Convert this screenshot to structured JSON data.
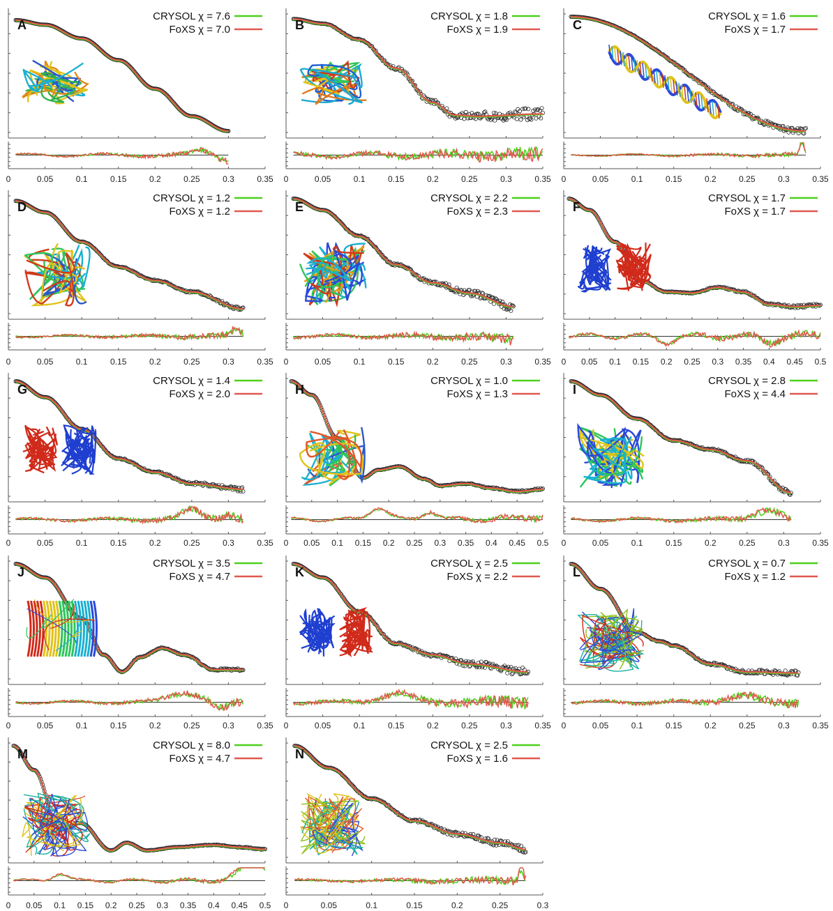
{
  "colors": {
    "crysol": "#4cd01a",
    "foxs": "#e0584e",
    "experimental": "#2a2a2a",
    "axis": "#555555"
  },
  "chart_data": [
    {
      "type": "line",
      "label": "A",
      "crysol_chi": "CRYSOL χ = 7.6",
      "foxs_chi": "FoXS χ = 7.0",
      "xticks": [
        "0",
        "0.05",
        "0.1",
        "0.15",
        "0.2",
        "0.25",
        "0.3",
        "0.35"
      ],
      "xlim": [
        0,
        0.35
      ],
      "qmin": 0.01,
      "qmax": 0.3,
      "profile": [
        [
          0.01,
          0.03
        ],
        [
          0.05,
          0.07
        ],
        [
          0.1,
          0.19
        ],
        [
          0.15,
          0.38
        ],
        [
          0.2,
          0.63
        ],
        [
          0.25,
          0.87
        ],
        [
          0.3,
          1.0
        ]
      ],
      "noise": 0.0,
      "res_amp": 0.12,
      "res_noise": 0.25,
      "res_bumps": [
        [
          0.265,
          0.6,
          0.02
        ]
      ],
      "res_tail": -0.5,
      "insert": "protein",
      "insert_palette": [
        "#e08a1a",
        "#e0c21a",
        "#2fb34a",
        "#1ab0d0",
        "#2a58c8"
      ]
    },
    {
      "type": "line",
      "label": "B",
      "crysol_chi": "CRYSOL χ = 1.8",
      "foxs_chi": "FoXS χ = 1.9",
      "xticks": [
        "0",
        "0.05",
        "0.1",
        "0.15",
        "0.2",
        "0.25",
        "0.3",
        "0.35"
      ],
      "xlim": [
        0,
        0.35
      ],
      "qmin": 0.01,
      "qmax": 0.35,
      "profile": [
        [
          0.01,
          0.02
        ],
        [
          0.05,
          0.06
        ],
        [
          0.1,
          0.2
        ],
        [
          0.15,
          0.45
        ],
        [
          0.2,
          0.75
        ],
        [
          0.23,
          0.86
        ],
        [
          0.26,
          0.87
        ],
        [
          0.35,
          0.85
        ]
      ],
      "noise": 0.06,
      "res_amp": 0.15,
      "res_noise": 0.65,
      "res_bumps": [],
      "res_tail": 0,
      "insert": "protein",
      "insert_palette": [
        "#1a5fd0",
        "#1aa8d0",
        "#e0c21a",
        "#2fc45a",
        "#e07a1a",
        "#d03a1a"
      ]
    },
    {
      "type": "line",
      "label": "C",
      "crysol_chi": "CRYSOL χ = 1.6",
      "foxs_chi": "FoXS χ = 1.7",
      "xticks": [
        "0",
        "0.05",
        "0.1",
        "0.15",
        "0.2",
        "0.25",
        "0.3",
        "0.35"
      ],
      "xlim": [
        0,
        0.35
      ],
      "qmin": 0.01,
      "qmax": 0.33,
      "profile": [
        [
          0.01,
          0.0
        ],
        [
          0.33,
          1.0
        ]
      ],
      "noise": 0.03,
      "res_amp": 0.08,
      "res_noise": 0.2,
      "res_bumps": [
        [
          0.325,
          1.2,
          0.004
        ]
      ],
      "res_tail": 0,
      "insert": "helix",
      "insert_palette": [
        "#2a4ad8",
        "#1ab0d0",
        "#e0c21a",
        "#d03a1a"
      ]
    },
    {
      "type": "line",
      "label": "D",
      "crysol_chi": "CRYSOL χ = 1.2",
      "foxs_chi": "FoXS χ = 1.2",
      "xticks": [
        "0",
        "0.05",
        "0.1",
        "0.15",
        "0.2",
        "0.25",
        "0.3",
        "0.35"
      ],
      "xlim": [
        0,
        0.35
      ],
      "qmin": 0.01,
      "qmax": 0.32,
      "profile": [
        [
          0.01,
          0.02
        ],
        [
          0.05,
          0.12
        ],
        [
          0.1,
          0.38
        ],
        [
          0.15,
          0.6
        ],
        [
          0.2,
          0.72
        ],
        [
          0.25,
          0.82
        ],
        [
          0.32,
          0.97
        ]
      ],
      "noise": 0.015,
      "res_amp": 0.08,
      "res_noise": 0.3,
      "res_bumps": [
        [
          0.31,
          0.6,
          0.01
        ]
      ],
      "res_tail": 0,
      "insert": "protein",
      "insert_palette": [
        "#1ab0d0",
        "#2fc45a",
        "#e0c21a",
        "#d03a1a",
        "#2a58c8"
      ]
    },
    {
      "type": "line",
      "label": "E",
      "crysol_chi": "CRYSOL χ = 2.2",
      "foxs_chi": "FoXS χ = 2.3",
      "xticks": [
        "0",
        "0.05",
        "0.1",
        "0.15",
        "0.2",
        "0.25",
        "0.3",
        "0.35"
      ],
      "xlim": [
        0,
        0.35
      ],
      "qmin": 0.01,
      "qmax": 0.31,
      "profile": [
        [
          0.01,
          0.0
        ],
        [
          0.05,
          0.1
        ],
        [
          0.1,
          0.33
        ],
        [
          0.15,
          0.58
        ],
        [
          0.2,
          0.74
        ],
        [
          0.25,
          0.83
        ],
        [
          0.31,
          0.95
        ]
      ],
      "noise": 0.04,
      "res_amp": 0.12,
      "res_noise": 0.45,
      "res_bumps": [],
      "res_tail": -0.3,
      "insert": "rna",
      "insert_palette": [
        "#2a4ad8",
        "#1ab0d0",
        "#e0a01a",
        "#d03a1a",
        "#2fc45a"
      ]
    },
    {
      "type": "line",
      "label": "F",
      "crysol_chi": "CRYSOL χ = 1.7",
      "foxs_chi": "FoXS χ = 1.7",
      "xticks": [
        "0",
        "0.05",
        "0.1",
        "0.15",
        "0.2",
        "0.25",
        "0.3",
        "0.35",
        "0.4",
        "0.45",
        "0.5"
      ],
      "xlim": [
        0,
        0.5
      ],
      "qmin": 0.01,
      "qmax": 0.5,
      "profile": [
        [
          0.01,
          0.0
        ],
        [
          0.05,
          0.1
        ],
        [
          0.1,
          0.38
        ],
        [
          0.15,
          0.72
        ],
        [
          0.2,
          0.82
        ],
        [
          0.25,
          0.83
        ],
        [
          0.3,
          0.78
        ],
        [
          0.35,
          0.82
        ],
        [
          0.4,
          0.93
        ],
        [
          0.45,
          0.95
        ],
        [
          0.5,
          0.94
        ]
      ],
      "noise": 0.015,
      "res_amp": 0.2,
      "res_noise": 0.4,
      "res_bumps": [
        [
          0.2,
          -0.5,
          0.02
        ],
        [
          0.4,
          -0.5,
          0.02
        ]
      ],
      "res_tail": 0,
      "insert": "dimer",
      "insert_palette": [
        "#1f3fd0",
        "#d02a1a"
      ]
    },
    {
      "type": "line",
      "label": "G",
      "crysol_chi": "CRYSOL χ = 1.4",
      "foxs_chi": "FoXS χ = 2.0",
      "xticks": [
        "0",
        "0.05",
        "0.1",
        "0.15",
        "0.2",
        "0.25",
        "0.3",
        "0.35"
      ],
      "xlim": [
        0,
        0.35
      ],
      "qmin": 0.01,
      "qmax": 0.32,
      "profile": [
        [
          0.01,
          0.0
        ],
        [
          0.05,
          0.14
        ],
        [
          0.1,
          0.42
        ],
        [
          0.15,
          0.68
        ],
        [
          0.2,
          0.8
        ],
        [
          0.25,
          0.9
        ],
        [
          0.32,
          0.95
        ]
      ],
      "noise": 0.02,
      "res_amp": 0.1,
      "res_noise": 0.35,
      "res_bumps": [
        [
          0.25,
          0.8,
          0.02
        ],
        [
          0.3,
          0.4,
          0.015
        ]
      ],
      "res_tail": 0,
      "insert": "dimer",
      "insert_palette": [
        "#d02a1a",
        "#1f3fd0"
      ]
    },
    {
      "type": "line",
      "label": "H",
      "crysol_chi": "CRYSOL χ = 1.0",
      "foxs_chi": "FoXS χ = 1.3",
      "xticks": [
        "0",
        "0.05",
        "0.1",
        "0.15",
        "0.2",
        "0.25",
        "0.3",
        "0.35",
        "0.4",
        "0.45",
        "0.5"
      ],
      "xlim": [
        0,
        0.5
      ],
      "qmin": 0.01,
      "qmax": 0.5,
      "profile": [
        [
          0.01,
          0.0
        ],
        [
          0.05,
          0.12
        ],
        [
          0.1,
          0.5
        ],
        [
          0.15,
          0.85
        ],
        [
          0.18,
          0.78
        ],
        [
          0.22,
          0.75
        ],
        [
          0.27,
          0.86
        ],
        [
          0.3,
          0.92
        ],
        [
          0.35,
          0.9
        ],
        [
          0.4,
          0.94
        ],
        [
          0.45,
          0.97
        ],
        [
          0.5,
          0.95
        ]
      ],
      "noise": 0.01,
      "res_amp": 0.15,
      "res_noise": 0.25,
      "res_bumps": [
        [
          0.18,
          1.0,
          0.025
        ],
        [
          0.28,
          0.7,
          0.02
        ]
      ],
      "res_tail": 0.3,
      "insert": "protein",
      "insert_palette": [
        "#2fc45a",
        "#1ab0d0",
        "#e0c21a",
        "#e0582a",
        "#2a58c8"
      ]
    },
    {
      "type": "line",
      "label": "I",
      "crysol_chi": "CRYSOL χ = 2.8",
      "foxs_chi": "FoXS χ = 4.4",
      "xticks": [
        "0",
        "0.05",
        "0.1",
        "0.15",
        "0.2",
        "0.25",
        "0.3",
        "0.35"
      ],
      "xlim": [
        0,
        0.35
      ],
      "qmin": 0.01,
      "qmax": 0.31,
      "profile": [
        [
          0.01,
          0.0
        ],
        [
          0.05,
          0.12
        ],
        [
          0.1,
          0.33
        ],
        [
          0.15,
          0.52
        ],
        [
          0.2,
          0.6
        ],
        [
          0.25,
          0.7
        ],
        [
          0.31,
          0.98
        ]
      ],
      "noise": 0.02,
      "res_amp": 0.12,
      "res_noise": 0.3,
      "res_bumps": [
        [
          0.28,
          1.0,
          0.03
        ]
      ],
      "res_tail": -0.5,
      "insert": "rna",
      "insert_palette": [
        "#2a4ad8",
        "#1ab0d0",
        "#e0c21a",
        "#2fc45a"
      ]
    },
    {
      "type": "line",
      "label": "J",
      "crysol_chi": "CRYSOL χ = 3.5",
      "foxs_chi": "FoXS χ = 4.7",
      "xticks": [
        "0",
        "0.05",
        "0.1",
        "0.15",
        "0.2",
        "0.25",
        "0.3",
        "0.35"
      ],
      "xlim": [
        0,
        0.35
      ],
      "qmin": 0.01,
      "qmax": 0.32,
      "profile": [
        [
          0.01,
          0.0
        ],
        [
          0.05,
          0.12
        ],
        [
          0.1,
          0.48
        ],
        [
          0.13,
          0.8
        ],
        [
          0.155,
          0.95
        ],
        [
          0.18,
          0.82
        ],
        [
          0.21,
          0.74
        ],
        [
          0.24,
          0.8
        ],
        [
          0.28,
          0.93
        ],
        [
          0.32,
          0.93
        ]
      ],
      "noise": 0.01,
      "res_amp": 0.1,
      "res_noise": 0.3,
      "res_bumps": [
        [
          0.24,
          0.8,
          0.03
        ],
        [
          0.29,
          -0.6,
          0.015
        ]
      ],
      "res_tail": 0,
      "insert": "barrel",
      "insert_palette": [
        "#d02a1a",
        "#e0c21a",
        "#2fc45a",
        "#1ab0d0",
        "#2a4ad8"
      ]
    },
    {
      "type": "line",
      "label": "K",
      "crysol_chi": "CRYSOL χ = 2.5",
      "foxs_chi": "FoXS χ = 2.2",
      "xticks": [
        "0",
        "0.05",
        "0.1",
        "0.15",
        "0.2",
        "0.25",
        "0.3",
        "0.35"
      ],
      "xlim": [
        0,
        0.35
      ],
      "qmin": 0.01,
      "qmax": 0.33,
      "profile": [
        [
          0.01,
          0.0
        ],
        [
          0.05,
          0.12
        ],
        [
          0.1,
          0.42
        ],
        [
          0.15,
          0.7
        ],
        [
          0.2,
          0.8
        ],
        [
          0.25,
          0.88
        ],
        [
          0.33,
          0.95
        ]
      ],
      "noise": 0.04,
      "res_amp": 0.12,
      "res_noise": 0.55,
      "res_bumps": [
        [
          0.15,
          0.7,
          0.03
        ]
      ],
      "res_tail": 0,
      "insert": "dimer",
      "insert_palette": [
        "#1f3fd0",
        "#d02a1a"
      ]
    },
    {
      "type": "line",
      "label": "L",
      "crysol_chi": "CRYSOL χ = 0.7",
      "foxs_chi": "FoXS χ = 1.2",
      "xticks": [
        "0",
        "0.05",
        "0.1",
        "0.15",
        "0.2",
        "0.25",
        "0.3",
        "0.35"
      ],
      "xlim": [
        0,
        0.35
      ],
      "qmin": 0.01,
      "qmax": 0.32,
      "profile": [
        [
          0.01,
          0.0
        ],
        [
          0.05,
          0.22
        ],
        [
          0.1,
          0.6
        ],
        [
          0.13,
          0.68
        ],
        [
          0.15,
          0.72
        ],
        [
          0.2,
          0.88
        ],
        [
          0.25,
          0.95
        ],
        [
          0.32,
          0.96
        ]
      ],
      "noise": 0.025,
      "res_amp": 0.12,
      "res_noise": 0.4,
      "res_bumps": [
        [
          0.24,
          0.5,
          0.03
        ]
      ],
      "res_tail": 0,
      "insert": "complex",
      "insert_palette": [
        "#8ec21a",
        "#2a4ad8",
        "#d02a1a",
        "#1ab0a0"
      ]
    },
    {
      "type": "line",
      "label": "M",
      "crysol_chi": "CRYSOL χ = 8.0",
      "foxs_chi": "FoXS χ = 4.7",
      "xticks": [
        "0",
        "0.05",
        "0.1",
        "0.15",
        "0.2",
        "0.25",
        "0.3",
        "0.35",
        "0.4",
        "0.45",
        "0.5"
      ],
      "xlim": [
        0,
        0.5
      ],
      "qmin": 0.01,
      "qmax": 0.5,
      "profile": [
        [
          0.01,
          0.0
        ],
        [
          0.05,
          0.22
        ],
        [
          0.1,
          0.76
        ],
        [
          0.14,
          0.7
        ],
        [
          0.2,
          0.95
        ],
        [
          0.23,
          0.88
        ],
        [
          0.27,
          0.95
        ],
        [
          0.33,
          0.92
        ],
        [
          0.4,
          0.9
        ],
        [
          0.45,
          0.92
        ],
        [
          0.5,
          0.94
        ]
      ],
      "noise": 0.005,
      "res_amp": 0.12,
      "res_noise": 0.2,
      "res_bumps": [
        [
          0.1,
          0.6,
          0.02
        ],
        [
          0.48,
          1.5,
          0.04
        ]
      ],
      "res_tail": 0,
      "insert": "complex",
      "insert_palette": [
        "#d02a1a",
        "#2a4ad8",
        "#1ab0a0",
        "#e0c21a"
      ]
    },
    {
      "type": "line",
      "label": "N",
      "crysol_chi": "CRYSOL χ = 2.5",
      "foxs_chi": "FoXS χ = 1.6",
      "xticks": [
        "0",
        "0.05",
        "0.1",
        "0.15",
        "0.2",
        "0.25",
        "0.3"
      ],
      "xlim": [
        0,
        0.3
      ],
      "qmin": 0.01,
      "qmax": 0.28,
      "profile": [
        [
          0.01,
          0.0
        ],
        [
          0.05,
          0.2
        ],
        [
          0.1,
          0.48
        ],
        [
          0.15,
          0.68
        ],
        [
          0.2,
          0.8
        ],
        [
          0.25,
          0.88
        ],
        [
          0.28,
          0.94
        ]
      ],
      "noise": 0.035,
      "res_amp": 0.08,
      "res_noise": 0.35,
      "res_bumps": [
        [
          0.275,
          1.0,
          0.004
        ]
      ],
      "res_tail": 0,
      "insert": "complex",
      "insert_palette": [
        "#8ec21a",
        "#2a4ad8",
        "#1ab0a0",
        "#e0582a",
        "#e0c21a"
      ]
    }
  ]
}
